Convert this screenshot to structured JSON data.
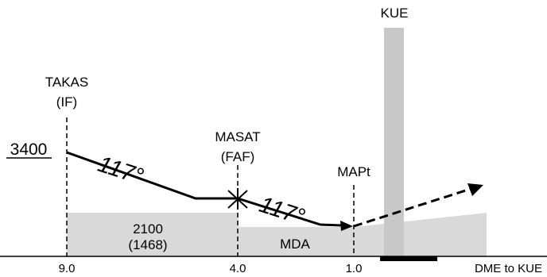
{
  "title_station": "KUE",
  "fixes": {
    "takas": {
      "name": "TAKAS",
      "role": "(IF)",
      "dme": "9.0"
    },
    "masat": {
      "name": "MASAT",
      "role": "(FAF)",
      "dme": "4.0"
    },
    "mapt": {
      "name": "MAPt",
      "dme": "1.0"
    }
  },
  "altitude_label": "3400",
  "courses": {
    "initial": "117°",
    "final": "117°"
  },
  "segment_minimum": {
    "altitude": "2100",
    "height": "(1468)"
  },
  "mda_label": "MDA",
  "axis_label": "DME to KUE",
  "colors": {
    "terrain": "#d9d9d9",
    "station_column": "#c8c8c8",
    "ink": "#000000"
  }
}
